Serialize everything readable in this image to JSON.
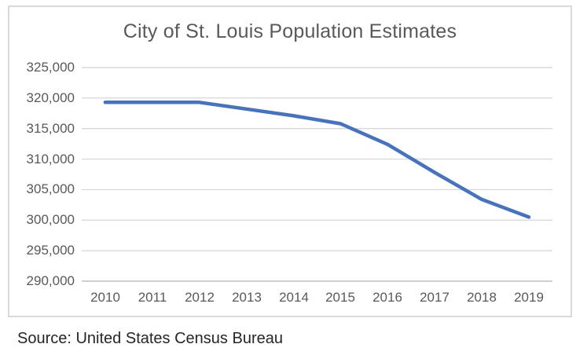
{
  "source": {
    "text": "Source: United States Census Bureau"
  },
  "colors": {
    "line": "#4472C4",
    "gridline": "#D9D9D9",
    "axis_line": "#BFBFBF",
    "frame_border": "#D9D9D9",
    "title_text": "#595959",
    "tick_text": "#595959",
    "source_text": "#262626",
    "background": "#FFFFFF"
  },
  "chart_data": {
    "type": "line",
    "title": "City of St. Louis Population Estimates",
    "categories": [
      "2010",
      "2011",
      "2012",
      "2013",
      "2014",
      "2015",
      "2016",
      "2017",
      "2018",
      "2019"
    ],
    "values": [
      319300,
      319300,
      319300,
      318200,
      317100,
      315800,
      312400,
      307800,
      303400,
      300500
    ],
    "xlabel": "",
    "ylabel": "",
    "ylim": [
      290000,
      325000
    ],
    "y_tick_step": 5000,
    "y_tick_labels": [
      "325,000",
      "320,000",
      "315,000",
      "310,000",
      "305,000",
      "300,000",
      "295,000",
      "290,000"
    ],
    "grid": "horizontal",
    "legend": "none",
    "line_color": "#4472C4"
  }
}
